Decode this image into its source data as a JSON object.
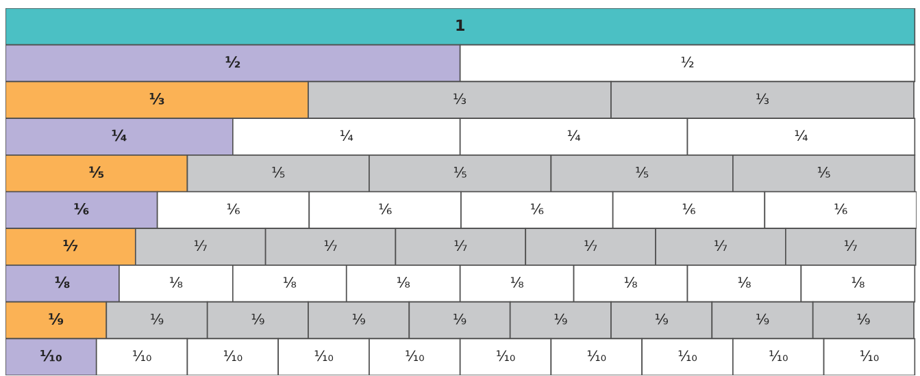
{
  "chart_data": {
    "type": "bar",
    "orientation": "horizontal",
    "stacked": true,
    "tick_labels": false,
    "categories": [
      null,
      null,
      null,
      null,
      null,
      null,
      null,
      null,
      null,
      null
    ],
    "series": [
      {
        "values": [
          1,
          0.5,
          0.333,
          0.25,
          0.2,
          0.167,
          0.143,
          0.125,
          0.111,
          0.1
        ],
        "value_labels": [
          "1",
          "¹⁄₂",
          "¹⁄₃",
          "¹⁄₄",
          "¹⁄₅",
          "¹⁄₆",
          "¹⁄₇",
          "¹⁄₈",
          "¹⁄₉",
          "¹⁄₁₀"
        ],
        "colors": [
          "#4bc0c4",
          "#b8b1d9",
          "#fbb255",
          "#b8b1d9",
          "#fbb255",
          "#b8b1d9",
          "#fbb255",
          "#b8b1d9",
          "#fbb255",
          "#b8b1d9"
        ]
      },
      {
        "values": [
          null,
          0.5,
          0.333,
          0.25,
          0.2,
          0.167,
          0.143,
          0.125,
          0.111,
          0.1
        ],
        "value_labels": [
          null,
          "¹⁄₂",
          "¹⁄₃",
          "¹⁄₄",
          "¹⁄₅",
          "¹⁄₆",
          "¹⁄₇",
          "¹⁄₈",
          "¹⁄₉",
          "¹⁄₁₀"
        ],
        "colors": [
          null,
          "#ffffff",
          "#c8c9cb",
          "#ffffff",
          "#c8c9cb",
          "#ffffff",
          "#c8c9cb",
          "#ffffff",
          "#c8c9cb",
          "#ffffff"
        ]
      },
      {
        "values": [
          null,
          null,
          0.333,
          0.25,
          0.2,
          0.167,
          0.143,
          0.125,
          0.111,
          0.1
        ],
        "value_labels": [
          null,
          null,
          "¹⁄₃",
          "¹⁄₄",
          "¹⁄₅",
          "¹⁄₆",
          "¹⁄₇",
          "¹⁄₈",
          "¹⁄₉",
          "¹⁄₁₀"
        ],
        "colors": [
          null,
          null,
          "#c8c9cb",
          "#ffffff",
          "#c8c9cb",
          "#ffffff",
          "#c8c9cb",
          "#ffffff",
          "#c8c9cb",
          "#ffffff"
        ]
      },
      {
        "values": [
          null,
          null,
          null,
          0.25,
          0.2,
          0.167,
          0.143,
          0.125,
          0.111,
          0.1
        ],
        "value_labels": [
          null,
          null,
          null,
          "¹⁄₄",
          "¹⁄₅",
          "¹⁄₆",
          "¹⁄₇",
          "¹⁄₈",
          "¹⁄₉",
          "¹⁄₁₀"
        ],
        "colors": [
          null,
          null,
          null,
          "#ffffff",
          "#c8c9cb",
          "#ffffff",
          "#c8c9cb",
          "#ffffff",
          "#c8c9cb",
          "#ffffff"
        ]
      },
      {
        "values": [
          null,
          null,
          null,
          null,
          0.2,
          0.167,
          0.143,
          0.125,
          0.111,
          0.1
        ],
        "value_labels": [
          null,
          null,
          null,
          null,
          "¹⁄₅",
          "¹⁄₆",
          "¹⁄₇",
          "¹⁄₈",
          "¹⁄₉",
          "¹⁄₁₀"
        ],
        "colors": [
          null,
          null,
          null,
          null,
          "#c8c9cb",
          "#ffffff",
          "#c8c9cb",
          "#ffffff",
          "#c8c9cb",
          "#ffffff"
        ]
      },
      {
        "values": [
          null,
          null,
          null,
          null,
          null,
          0.167,
          0.143,
          0.125,
          0.111,
          0.1
        ],
        "value_labels": [
          null,
          null,
          null,
          null,
          null,
          "¹⁄₆",
          "¹⁄₇",
          "¹⁄₈",
          "¹⁄₉",
          "¹⁄₁₀"
        ],
        "colors": [
          null,
          null,
          null,
          null,
          null,
          "#ffffff",
          "#c8c9cb",
          "#ffffff",
          "#c8c9cb",
          "#ffffff"
        ]
      },
      {
        "values": [
          null,
          null,
          null,
          null,
          null,
          null,
          0.143,
          0.125,
          0.111,
          0.1
        ],
        "value_labels": [
          null,
          null,
          null,
          null,
          null,
          null,
          "¹⁄₇",
          "¹⁄₈",
          "¹⁄₉",
          "¹⁄₁₀"
        ],
        "colors": [
          null,
          null,
          null,
          null,
          null,
          null,
          "#c8c9cb",
          "#ffffff",
          "#c8c9cb",
          "#ffffff"
        ]
      },
      {
        "values": [
          null,
          null,
          null,
          null,
          null,
          null,
          null,
          0.125,
          0.111,
          0.1
        ],
        "value_labels": [
          null,
          null,
          null,
          null,
          null,
          null,
          null,
          "¹⁄₈",
          "¹⁄₉",
          "¹⁄₁₀"
        ],
        "colors": [
          null,
          null,
          null,
          null,
          null,
          null,
          null,
          "#ffffff",
          "#c8c9cb",
          "#ffffff"
        ]
      },
      {
        "values": [
          null,
          null,
          null,
          null,
          null,
          null,
          null,
          null,
          0.111,
          0.1
        ],
        "value_labels": [
          null,
          null,
          null,
          null,
          null,
          null,
          null,
          null,
          "¹⁄₉",
          "¹⁄₁₀"
        ],
        "colors": [
          null,
          null,
          null,
          null,
          null,
          null,
          null,
          null,
          "#c8c9cb",
          "#ffffff"
        ]
      },
      {
        "values": [
          null,
          null,
          null,
          null,
          null,
          null,
          null,
          null,
          null,
          0.1
        ],
        "value_labels": [
          null,
          null,
          null,
          null,
          null,
          null,
          null,
          null,
          null,
          "¹⁄₁₀"
        ],
        "colors": [
          null,
          null,
          null,
          null,
          null,
          null,
          null,
          null,
          null,
          "#ffffff"
        ]
      }
    ]
  }
}
